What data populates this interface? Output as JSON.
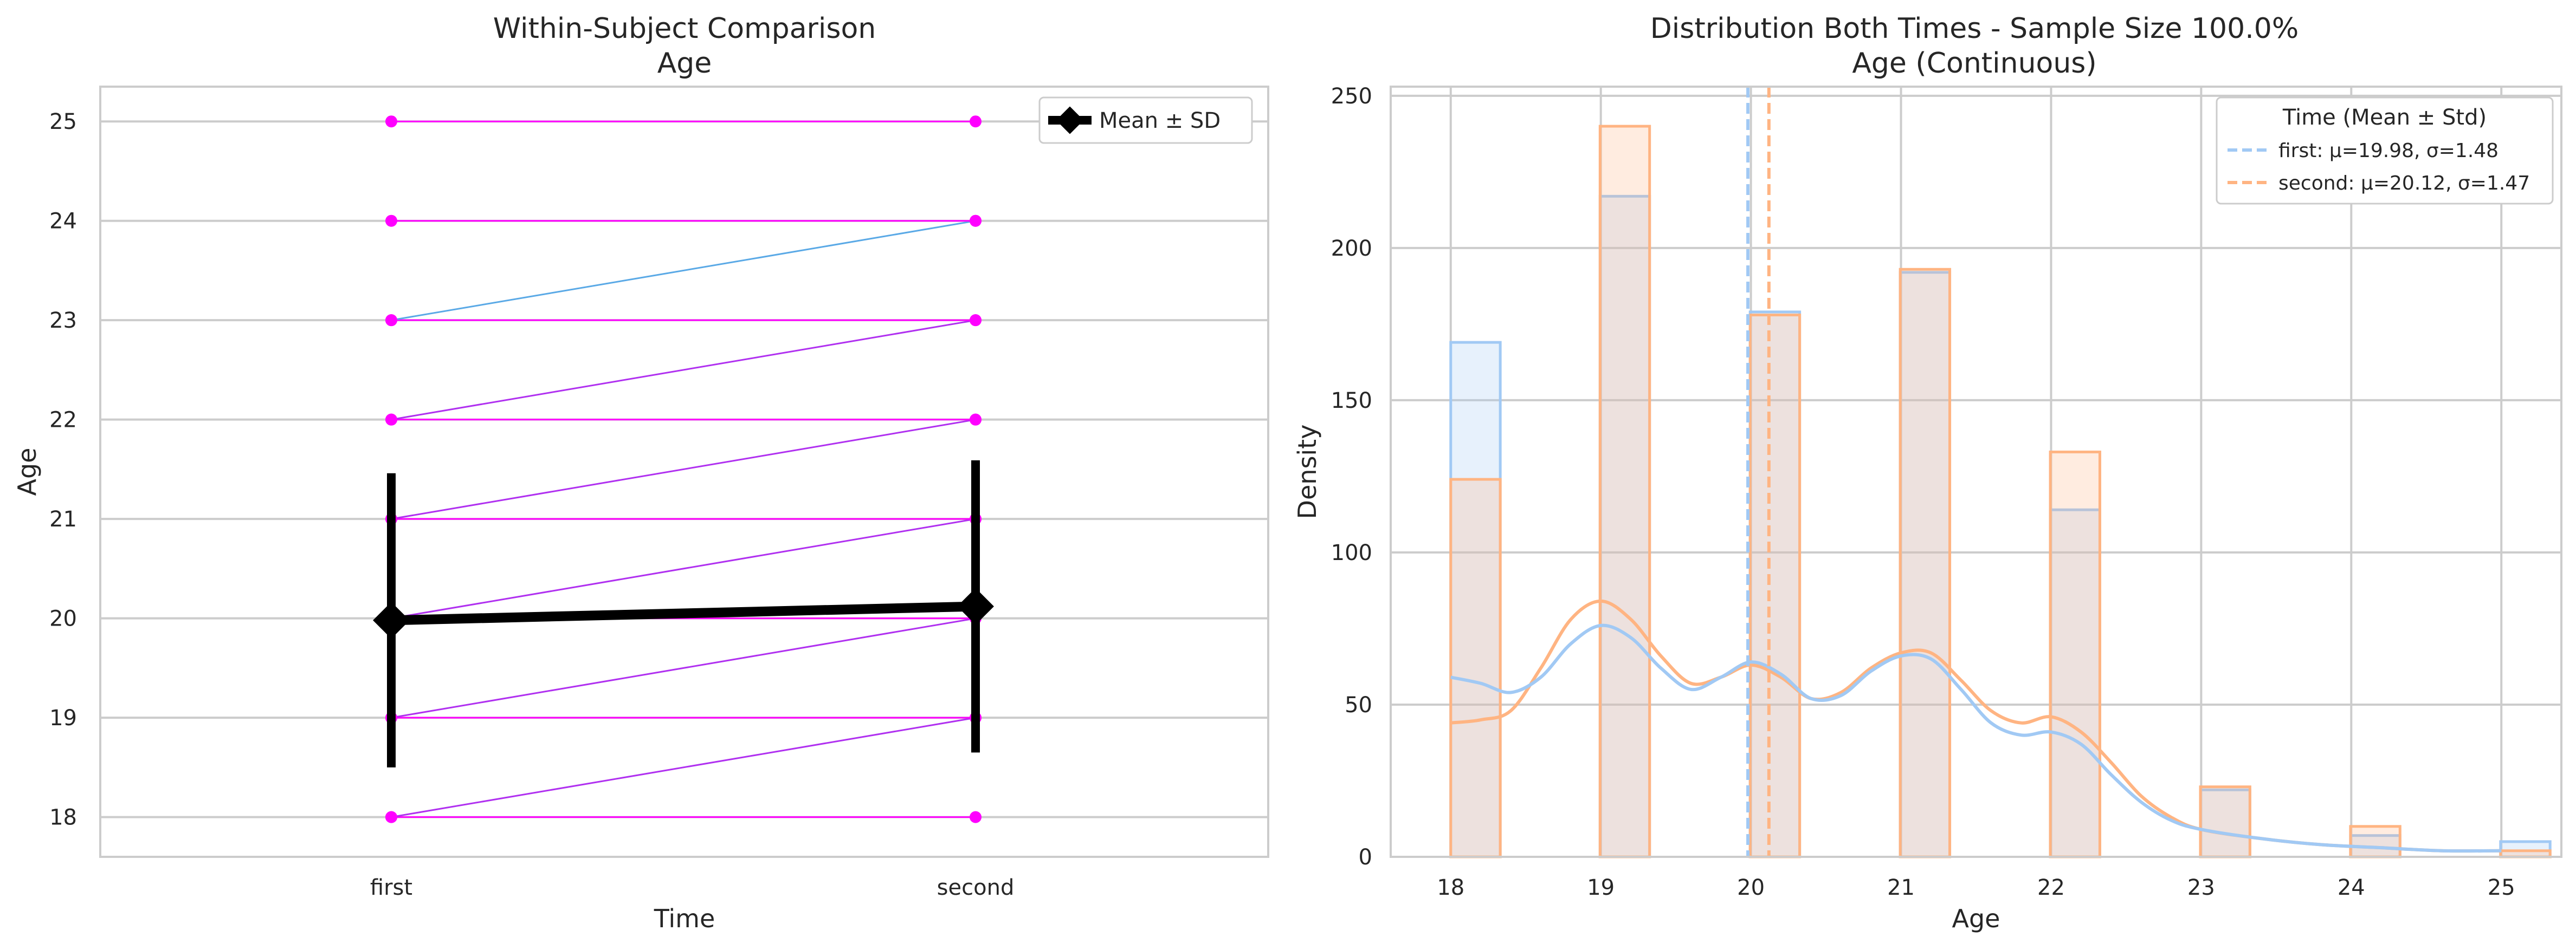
{
  "chart_data": [
    {
      "type": "line",
      "title": "Within-Subject Comparison",
      "subtitle": "Age",
      "xlabel": "Time",
      "ylabel": "Age",
      "categories": [
        "first",
        "second"
      ],
      "yticks": [
        18,
        19,
        20,
        21,
        22,
        23,
        24,
        25
      ],
      "ylim": [
        17.6,
        25.35
      ],
      "grid": "horizontal",
      "legend": {
        "position": "top-right",
        "label": "Mean ± SD"
      },
      "pair_color": "#ff00ff",
      "changed_pair_color": "#b030f0",
      "highlight_pair_color": "#5aa9e6",
      "pairs": [
        [
          18,
          18
        ],
        [
          18,
          19
        ],
        [
          19,
          19
        ],
        [
          19,
          20
        ],
        [
          20,
          20
        ],
        [
          20,
          21
        ],
        [
          21,
          21
        ],
        [
          21,
          22
        ],
        [
          22,
          22
        ],
        [
          22,
          23
        ],
        [
          23,
          23
        ],
        [
          23,
          24
        ],
        [
          24,
          24
        ],
        [
          25,
          25
        ]
      ],
      "mean": [
        19.98,
        20.12
      ],
      "sd": [
        1.48,
        1.47
      ],
      "mean_color": "#000000"
    },
    {
      "type": "bar",
      "title": "Distribution Both Times - Sample Size 100.0%",
      "subtitle": "Age (Continuous)",
      "xlabel": "Age",
      "ylabel": "Density",
      "xticks": [
        18,
        19,
        20,
        21,
        22,
        23,
        24,
        25
      ],
      "yticks": [
        0,
        50,
        100,
        150,
        200,
        250
      ],
      "xlim": [
        17.6,
        25.4
      ],
      "ylim": [
        0,
        253
      ],
      "grid": "both",
      "legend": {
        "position": "top-right",
        "title": "Time (Mean ± Std)",
        "entries": [
          {
            "label": "first: μ=19.98, σ=1.48",
            "color": "#a1c9f4"
          },
          {
            "label": "second: μ=20.12, σ=1.47",
            "color": "#ffb482"
          }
        ]
      },
      "bin_centers": [
        18.165,
        19.16,
        20.16,
        21.16,
        22.16,
        23.16,
        24.16,
        25.16
      ],
      "bin_width": 0.33,
      "series": [
        {
          "name": "first",
          "color": "#a1c9f4",
          "mean": 19.98,
          "values": [
            169,
            217,
            179,
            192,
            114,
            22,
            7,
            5
          ],
          "kde": {
            "x": [
              18,
              18.2,
              18.4,
              18.6,
              18.8,
              19,
              19.2,
              19.4,
              19.6,
              19.8,
              20,
              20.2,
              20.4,
              20.6,
              20.8,
              21,
              21.2,
              21.4,
              21.6,
              21.8,
              22,
              22.2,
              22.4,
              22.6,
              22.8,
              23,
              23.4,
              23.8,
              24.2,
              24.6,
              25
            ],
            "y": [
              59,
              57,
              54,
              59,
              70,
              76,
              72,
              62,
              55,
              59,
              64,
              60,
              52,
              53,
              61,
              66,
              65,
              55,
              44,
              40,
              41,
              37,
              27,
              18,
              12,
              9,
              6,
              4,
              3,
              2,
              2
            ]
          }
        },
        {
          "name": "second",
          "color": "#ffb482",
          "mean": 20.12,
          "values": [
            124,
            240,
            178,
            193,
            133,
            23,
            10,
            2
          ],
          "kde": {
            "x": [
              18,
              18.2,
              18.4,
              18.6,
              18.8,
              19,
              19.2,
              19.4,
              19.6,
              19.8,
              20,
              20.2,
              20.4,
              20.6,
              20.8,
              21,
              21.2,
              21.4,
              21.6,
              21.8,
              22,
              22.2,
              22.4,
              22.6,
              22.8,
              23,
              23.4,
              23.8,
              24.2,
              24.6,
              25
            ],
            "y": [
              44,
              45,
              48,
              62,
              78,
              84,
              78,
              66,
              57,
              59,
              63,
              59,
              52,
              54,
              62,
              67,
              67,
              58,
              48,
              44,
              46,
              41,
              31,
              20,
              13,
              9,
              6,
              4,
              3,
              2,
              2
            ]
          }
        }
      ]
    }
  ]
}
